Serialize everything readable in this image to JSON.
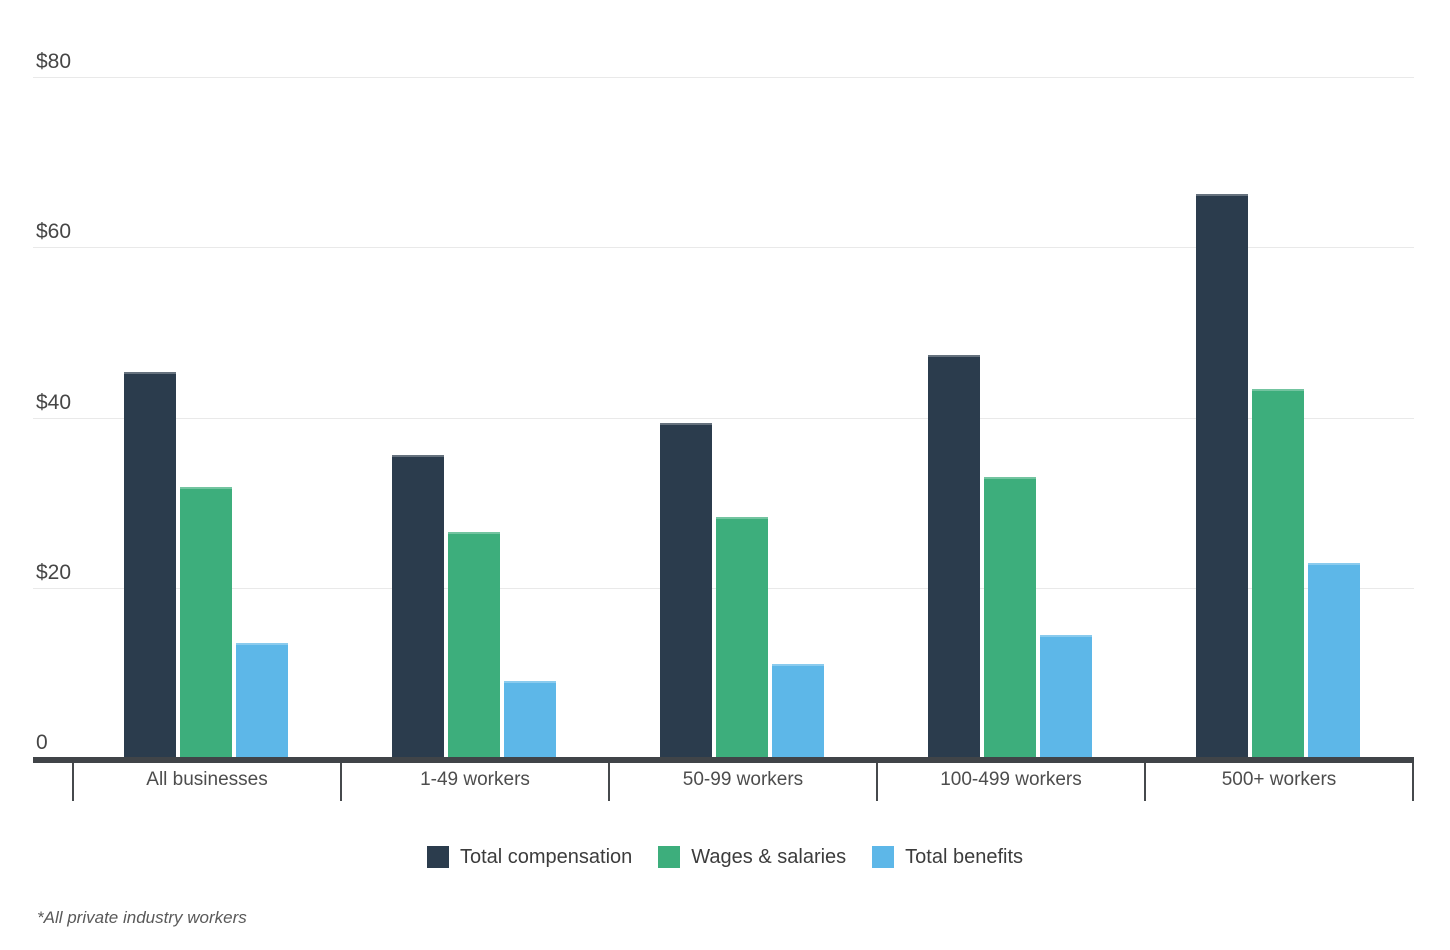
{
  "chart_data": {
    "type": "bar",
    "title": "",
    "categories": [
      "All businesses",
      "1-49 workers",
      "50-99 workers",
      "100-499 workers",
      "500+ workers"
    ],
    "series": [
      {
        "name": "Total compensation",
        "color": "#2b3c4d",
        "values": [
          45.4,
          35.6,
          39.3,
          47.4,
          66.2
        ]
      },
      {
        "name": "Wages & salaries",
        "color": "#3dae7c",
        "values": [
          31.8,
          26.6,
          28.3,
          33.0,
          43.4
        ]
      },
      {
        "name": "Total benefits",
        "color": "#5db7e8",
        "values": [
          13.5,
          9.0,
          11.0,
          14.5,
          22.9
        ]
      }
    ],
    "y_axis": {
      "min": 0,
      "max": 80,
      "ticks": [
        {
          "label": "$80",
          "value": 80
        },
        {
          "label": "$60",
          "value": 60
        },
        {
          "label": "$40",
          "value": 40
        },
        {
          "label": "$20",
          "value": 20
        },
        {
          "label": "0",
          "value": 0
        }
      ]
    },
    "grid": true,
    "legend_position": "bottom"
  },
  "legend": {
    "items": [
      "Total compensation",
      "Wages & salaries",
      "Total benefits"
    ]
  },
  "footnote": "*All private industry workers"
}
